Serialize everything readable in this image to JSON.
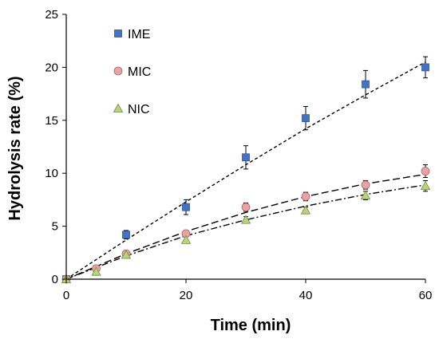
{
  "chart_data": {
    "type": "scatter",
    "title": "",
    "xlabel": "Time (min)",
    "ylabel": "Hydrolysis rate (%)",
    "xlim": [
      0,
      60
    ],
    "ylim": [
      0,
      25
    ],
    "xticks": [
      0,
      20,
      40,
      60
    ],
    "yticks": [
      0,
      5,
      10,
      15,
      20,
      25
    ],
    "grid": false,
    "legend_position": "top-left",
    "series": [
      {
        "name": "IME",
        "marker": "square",
        "color": "#4472C4",
        "line_style": "dotted",
        "x": [
          0,
          10,
          20,
          30,
          40,
          50,
          60
        ],
        "y": [
          0,
          4.2,
          6.8,
          11.5,
          15.2,
          18.4,
          20.0
        ],
        "error": [
          0,
          0.4,
          0.7,
          1.1,
          1.1,
          1.3,
          1.0
        ],
        "fit": {
          "x": [
            0,
            10,
            20,
            30,
            40,
            50,
            60
          ],
          "y": [
            0,
            3.7,
            7.3,
            10.8,
            14.2,
            17.4,
            20.5
          ]
        }
      },
      {
        "name": "MIC",
        "marker": "circle",
        "color": "#E8A3A3",
        "line_style": "dashed",
        "x": [
          0,
          5,
          10,
          20,
          30,
          40,
          50,
          60
        ],
        "y": [
          0,
          1.0,
          2.4,
          4.3,
          6.8,
          7.8,
          8.9,
          10.2
        ],
        "error": [
          0,
          0.2,
          0.2,
          0.3,
          0.4,
          0.4,
          0.4,
          0.6
        ],
        "fit": {
          "x": [
            0,
            10,
            20,
            30,
            40,
            50,
            60
          ],
          "y": [
            0,
            2.4,
            4.5,
            6.3,
            7.8,
            9.0,
            9.9
          ]
        }
      },
      {
        "name": "NIC",
        "marker": "triangle",
        "color": "#B9D47E",
        "line_style": "dash-dot",
        "x": [
          0,
          5,
          10,
          20,
          30,
          40,
          50,
          60
        ],
        "y": [
          0,
          0.7,
          2.3,
          3.7,
          5.6,
          6.5,
          7.9,
          8.8
        ],
        "error": [
          0,
          0.2,
          0.2,
          0.3,
          0.3,
          0.3,
          0.4,
          0.5
        ],
        "fit": {
          "x": [
            0,
            10,
            20,
            30,
            40,
            50,
            60
          ],
          "y": [
            0,
            2.2,
            4.1,
            5.6,
            6.9,
            8.0,
            8.9
          ]
        }
      }
    ]
  }
}
